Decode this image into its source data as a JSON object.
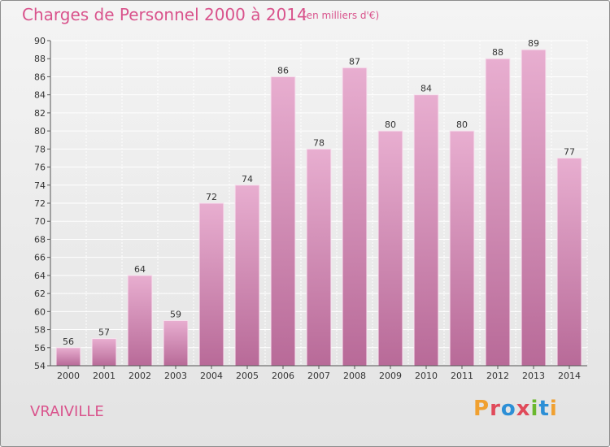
{
  "header": {
    "title": "Charges de Personnel 2000 à 2014",
    "unit": "(en milliers d'€)"
  },
  "footer": {
    "town": "VRAIVILLE",
    "logo_text": "Proxiti",
    "logo_colors": [
      "#f0a030",
      "#e04a5a",
      "#2c8fd6",
      "#e04a5a",
      "#6ab82e",
      "#2c8fd6",
      "#f0a030"
    ]
  },
  "colors": {
    "title": "#d9538c",
    "bar_light": "#e8aed0",
    "bar_dark": "#b86a98",
    "grid": "#ffffff"
  },
  "chart_data": {
    "type": "bar",
    "title": "Charges de Personnel 2000 à 2014",
    "subtitle": "(en milliers d'€)",
    "categories": [
      "2000",
      "2001",
      "2002",
      "2003",
      "2004",
      "2005",
      "2006",
      "2007",
      "2008",
      "2009",
      "2010",
      "2011",
      "2012",
      "2013",
      "2014"
    ],
    "values": [
      56,
      57,
      64,
      59,
      72,
      74,
      86,
      78,
      87,
      80,
      84,
      80,
      88,
      89,
      77
    ],
    "ylim": [
      54,
      90
    ],
    "ytick_step": 2,
    "grid": true,
    "legend": "none"
  }
}
